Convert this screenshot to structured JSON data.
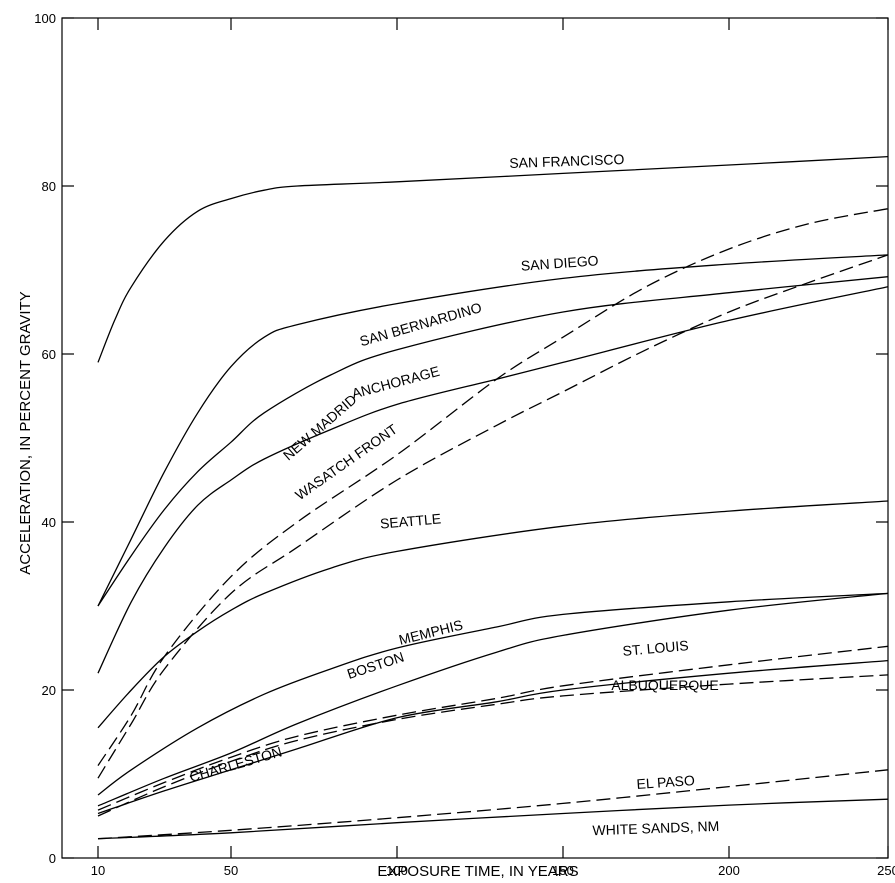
{
  "chart_data": {
    "type": "line",
    "xlabel": "EXPOSURE TIME, IN YEARS",
    "ylabel": "ACCELERATION, IN PERCENT GRAVITY",
    "xlim": [
      0,
      250
    ],
    "ylim": [
      0,
      100
    ],
    "x_ticks": [
      10,
      50,
      100,
      150,
      200,
      250
    ],
    "x_tick_labels": [
      "10",
      "50",
      "100",
      "150",
      "200",
      "250"
    ],
    "y_ticks": [
      0,
      20,
      40,
      60,
      80,
      100
    ],
    "y_tick_labels": [
      "0",
      "20",
      "40",
      "60",
      "80",
      "100"
    ],
    "grid": false,
    "legend": "none",
    "series": [
      {
        "name": "SAN FRANCISCO",
        "style": "solid",
        "points": [
          [
            10,
            59
          ],
          [
            15,
            64
          ],
          [
            20,
            68
          ],
          [
            30,
            73.5
          ],
          [
            40,
            77
          ],
          [
            50,
            78.5
          ],
          [
            60,
            79.5
          ],
          [
            70,
            80
          ],
          [
            100,
            80.5
          ],
          [
            150,
            81.5
          ],
          [
            200,
            82.5
          ],
          [
            250,
            83.5
          ]
        ]
      },
      {
        "name": "SAN DIEGO",
        "style": "solid",
        "points": [
          [
            10,
            30
          ],
          [
            20,
            38
          ],
          [
            30,
            46
          ],
          [
            40,
            53
          ],
          [
            50,
            58.5
          ],
          [
            60,
            62
          ],
          [
            70,
            63.5
          ],
          [
            100,
            66
          ],
          [
            150,
            69
          ],
          [
            200,
            70.7
          ],
          [
            250,
            71.8
          ]
        ]
      },
      {
        "name": "SAN BERNARDINO",
        "style": "solid",
        "points": [
          [
            10,
            30
          ],
          [
            20,
            36
          ],
          [
            30,
            41.5
          ],
          [
            40,
            46
          ],
          [
            50,
            49.5
          ],
          [
            60,
            53
          ],
          [
            80,
            57.5
          ],
          [
            100,
            60.5
          ],
          [
            150,
            65
          ],
          [
            200,
            67.3
          ],
          [
            250,
            69.2
          ]
        ]
      },
      {
        "name": "ANCHORAGE",
        "style": "solid",
        "points": [
          [
            10,
            22
          ],
          [
            20,
            30.5
          ],
          [
            30,
            37
          ],
          [
            40,
            42
          ],
          [
            50,
            45
          ],
          [
            60,
            47.5
          ],
          [
            80,
            51
          ],
          [
            100,
            54
          ],
          [
            130,
            57
          ],
          [
            150,
            59
          ],
          [
            200,
            64
          ],
          [
            250,
            68
          ]
        ]
      },
      {
        "name": "NEW MADRID",
        "style": "dashed",
        "points": [
          [
            10,
            11
          ],
          [
            20,
            17
          ],
          [
            30,
            24
          ],
          [
            50,
            33.5
          ],
          [
            70,
            40
          ],
          [
            100,
            48
          ],
          [
            130,
            57
          ],
          [
            150,
            62
          ],
          [
            175,
            68
          ],
          [
            200,
            72.5
          ],
          [
            225,
            75.5
          ],
          [
            250,
            77.3
          ]
        ]
      },
      {
        "name": "WASATCH FRONT",
        "style": "dashed",
        "points": [
          [
            10,
            9.5
          ],
          [
            20,
            16
          ],
          [
            30,
            22.5
          ],
          [
            50,
            31.5
          ],
          [
            70,
            37
          ],
          [
            100,
            45
          ],
          [
            130,
            51.5
          ],
          [
            150,
            55.5
          ],
          [
            175,
            60.5
          ],
          [
            200,
            65
          ],
          [
            225,
            68.5
          ],
          [
            250,
            71.8
          ]
        ]
      },
      {
        "name": "SEATTLE",
        "style": "solid",
        "points": [
          [
            10,
            15.5
          ],
          [
            20,
            20
          ],
          [
            30,
            24
          ],
          [
            40,
            27
          ],
          [
            50,
            29.5
          ],
          [
            60,
            31.5
          ],
          [
            80,
            34.5
          ],
          [
            100,
            36.5
          ],
          [
            150,
            39.5
          ],
          [
            200,
            41.3
          ],
          [
            250,
            42.5
          ]
        ]
      },
      {
        "name": "MEMPHIS",
        "style": "solid",
        "points": [
          [
            10,
            7.5
          ],
          [
            20,
            10.5
          ],
          [
            40,
            15.5
          ],
          [
            60,
            19.5
          ],
          [
            80,
            22.5
          ],
          [
            100,
            25
          ],
          [
            130,
            27.5
          ],
          [
            150,
            29
          ],
          [
            200,
            30.5
          ],
          [
            250,
            31.5
          ]
        ]
      },
      {
        "name": "BOSTON",
        "style": "solid",
        "points": [
          [
            10,
            6.2
          ],
          [
            30,
            9.5
          ],
          [
            50,
            12.5
          ],
          [
            70,
            16
          ],
          [
            100,
            20.5
          ],
          [
            130,
            24.5
          ],
          [
            150,
            26.5
          ],
          [
            200,
            29.5
          ],
          [
            250,
            31.5
          ]
        ]
      },
      {
        "name": "ST. LOUIS",
        "style": "dashed",
        "points": [
          [
            10,
            5.7
          ],
          [
            30,
            9
          ],
          [
            50,
            12
          ],
          [
            70,
            14.5
          ],
          [
            100,
            17
          ],
          [
            130,
            19
          ],
          [
            150,
            20.5
          ],
          [
            200,
            23
          ],
          [
            250,
            25.2
          ]
        ]
      },
      {
        "name": "ALBUQUERQUE",
        "style": "dashed",
        "points": [
          [
            10,
            5
          ],
          [
            30,
            8.5
          ],
          [
            50,
            11.5
          ],
          [
            70,
            14
          ],
          [
            100,
            16.5
          ],
          [
            130,
            18.3
          ],
          [
            150,
            19.3
          ],
          [
            200,
            20.7
          ],
          [
            250,
            21.8
          ]
        ]
      },
      {
        "name": "CHARLESTON",
        "style": "solid",
        "points": [
          [
            10,
            5.3
          ],
          [
            30,
            8
          ],
          [
            50,
            10.5
          ],
          [
            70,
            13
          ],
          [
            100,
            16.7
          ],
          [
            130,
            18.6
          ],
          [
            150,
            20
          ],
          [
            200,
            22
          ],
          [
            250,
            23.5
          ]
        ]
      },
      {
        "name": "EL PASO",
        "style": "dashed",
        "points": [
          [
            10,
            2.3
          ],
          [
            50,
            3.3
          ],
          [
            100,
            4.8
          ],
          [
            150,
            6.5
          ],
          [
            200,
            8.5
          ],
          [
            250,
            10.5
          ]
        ]
      },
      {
        "name": "WHITE SANDS, NM",
        "style": "solid",
        "points": [
          [
            10,
            2.3
          ],
          [
            50,
            3
          ],
          [
            100,
            4.2
          ],
          [
            150,
            5.3
          ],
          [
            200,
            6.3
          ],
          [
            250,
            7
          ]
        ]
      }
    ]
  }
}
